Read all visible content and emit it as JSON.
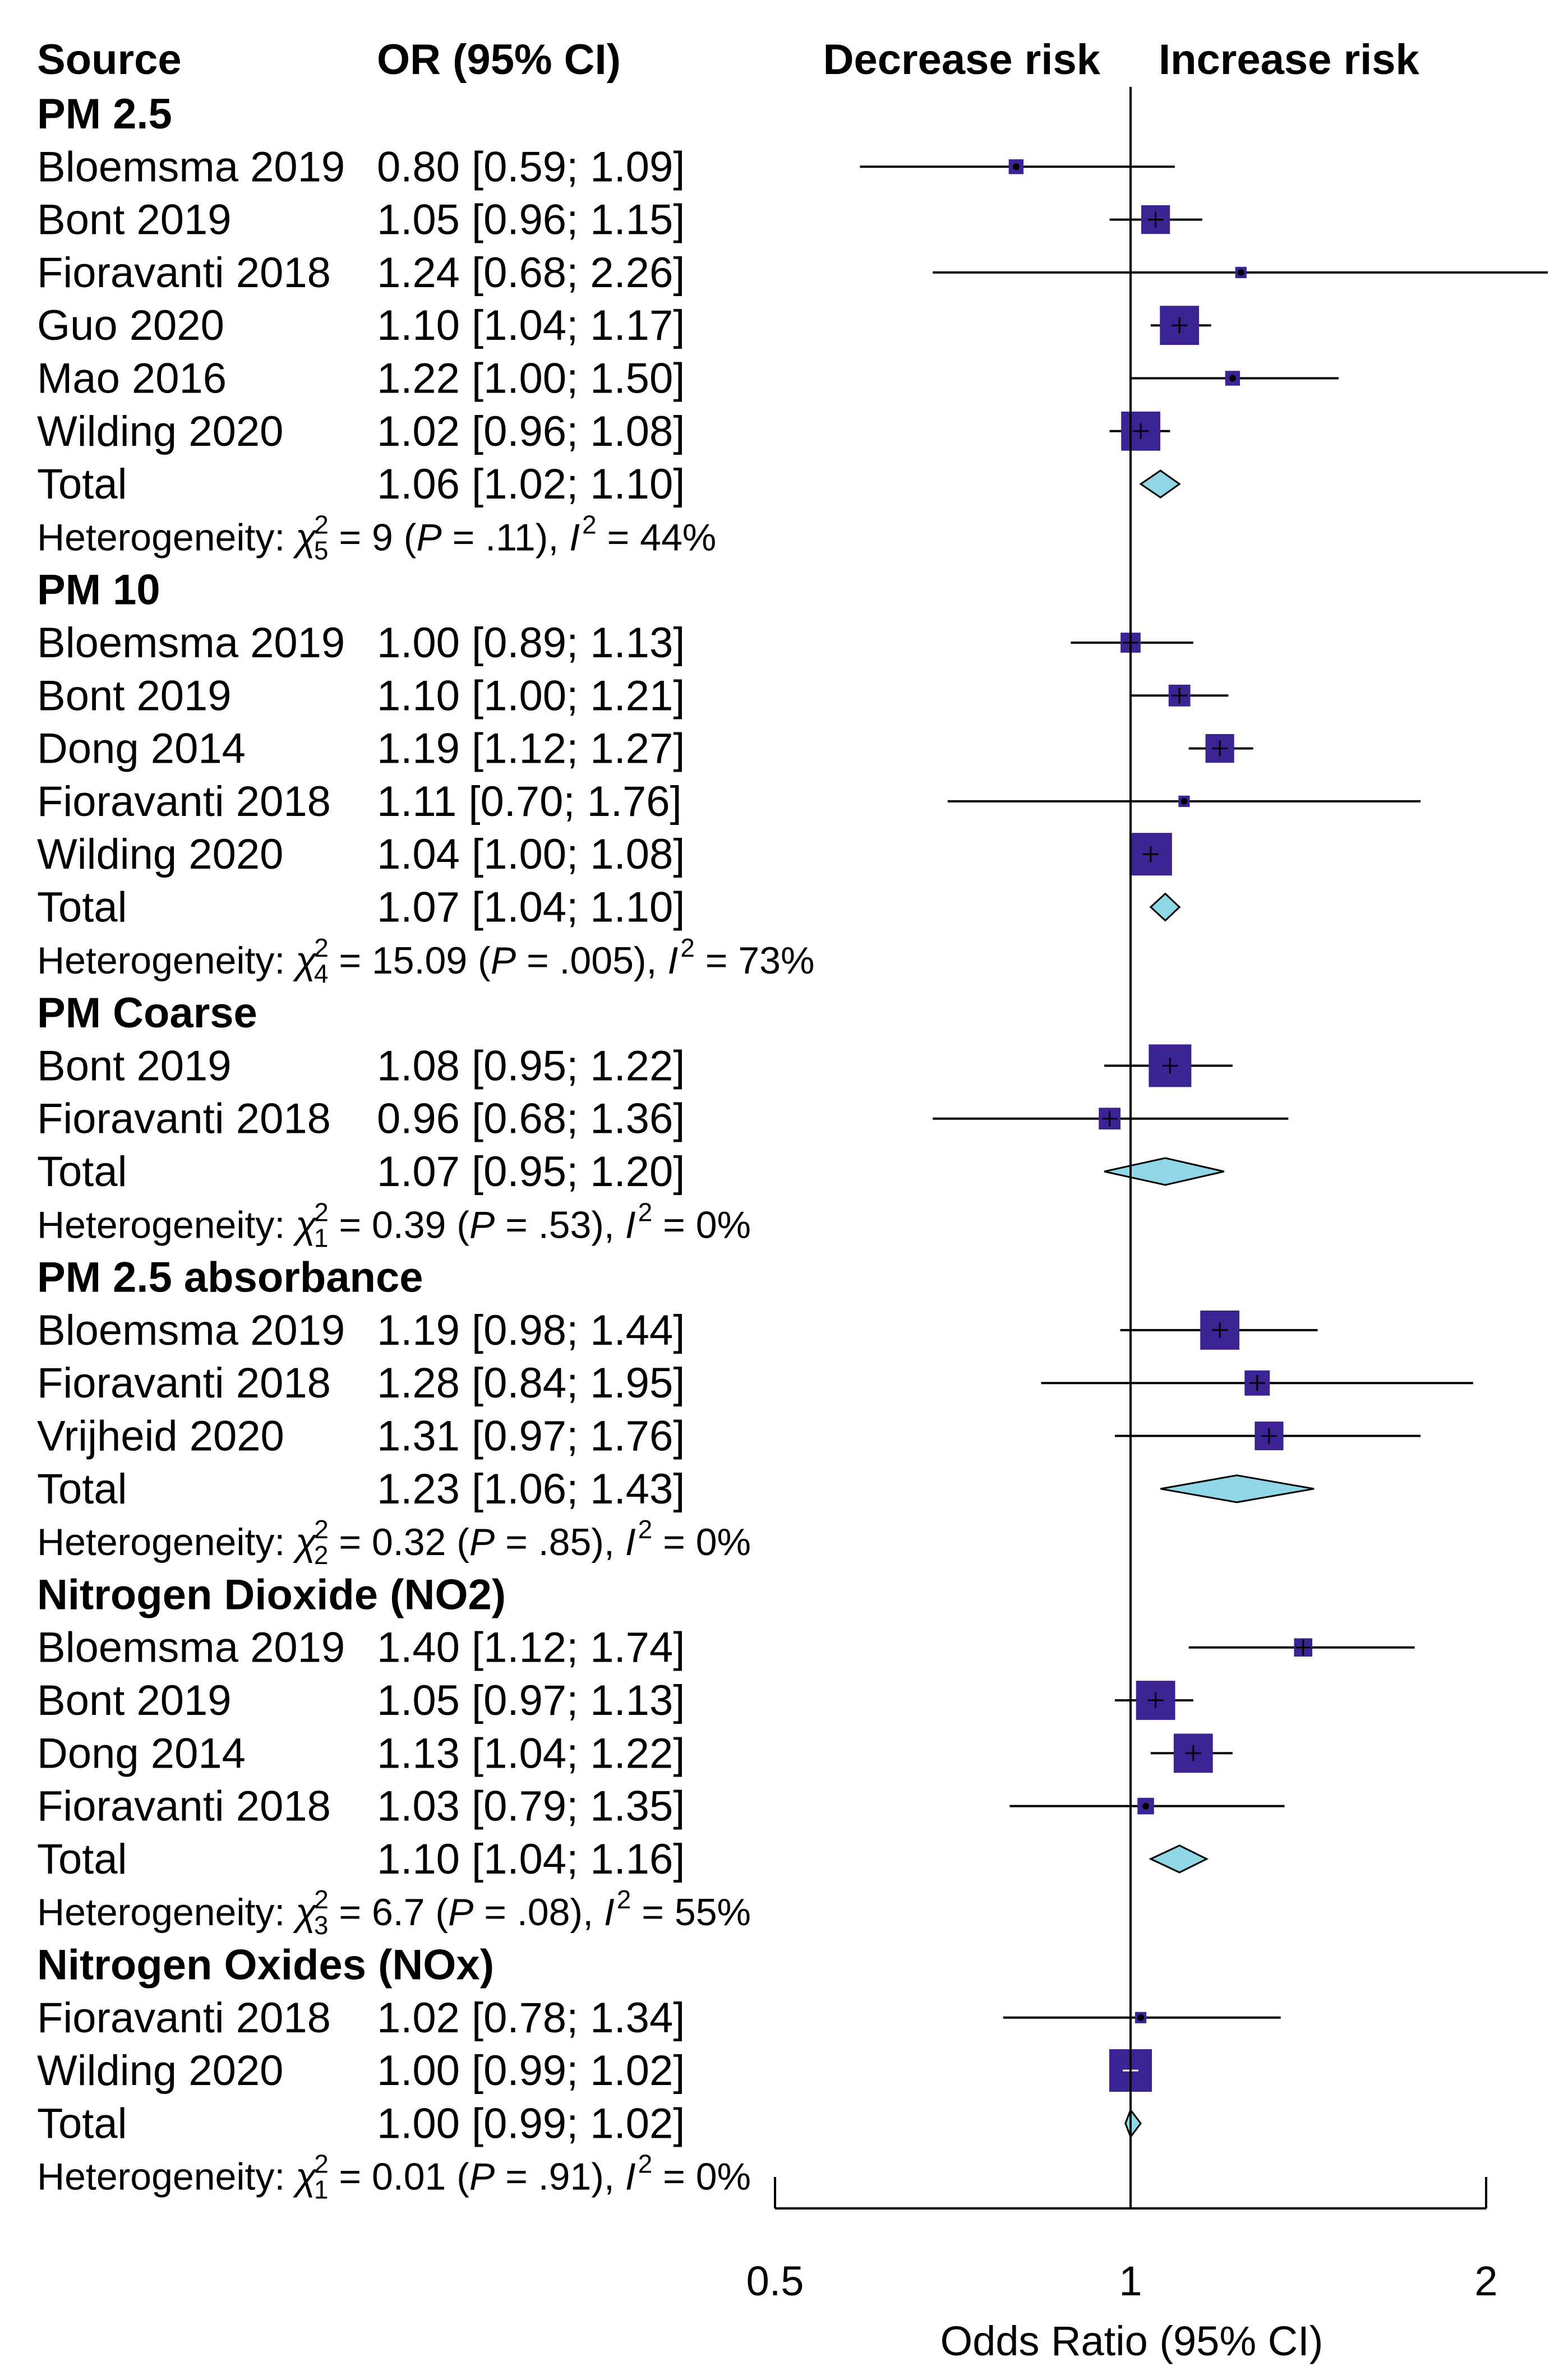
{
  "chart_data": {
    "type": "forest",
    "headers": {
      "source": "Source",
      "estimate": "OR (95% CI)",
      "left_direction": "Decrease risk",
      "right_direction": "Increase risk"
    },
    "x_axis": {
      "label": "Odds Ratio (95% CI)",
      "scale": "log",
      "range": [
        0.5,
        2
      ],
      "ticks": [
        {
          "value": 0.5,
          "label": "0.5"
        },
        {
          "value": 1,
          "label": "1"
        },
        {
          "value": 2,
          "label": "2"
        }
      ],
      "reference_line": 1
    },
    "colors": {
      "study_box": "#3b2394",
      "total_diamond": "#8fd6e6",
      "line": "#000000"
    },
    "groups": [
      {
        "name": "PM 2.5",
        "studies": [
          {
            "source": "Bloemsma 2019",
            "ci_text": "0.80 [0.59; 1.09]",
            "or": 0.8,
            "lo": 0.59,
            "hi": 1.09,
            "weight": 0.2
          },
          {
            "source": "Bont 2019",
            "ci_text": "1.05 [0.96; 1.15]",
            "or": 1.05,
            "lo": 0.96,
            "hi": 1.15,
            "weight": 0.6
          },
          {
            "source": "Fioravanti 2018",
            "ci_text": "1.24 [0.68; 2.26]",
            "or": 1.24,
            "lo": 0.68,
            "hi": 2.26,
            "weight": 0.1
          },
          {
            "source": "Guo 2020",
            "ci_text": "1.10 [1.04; 1.17]",
            "or": 1.1,
            "lo": 1.04,
            "hi": 1.17,
            "weight": 0.9
          },
          {
            "source": "Mao 2016",
            "ci_text": "1.22 [1.00; 1.50]",
            "or": 1.22,
            "lo": 1.0,
            "hi": 1.5,
            "weight": 0.2
          },
          {
            "source": "Wilding 2020",
            "ci_text": "1.02 [0.96; 1.08]",
            "or": 1.02,
            "lo": 0.96,
            "hi": 1.08,
            "weight": 0.9
          }
        ],
        "total": {
          "label": "Total",
          "ci_text": "1.06 [1.02; 1.10]",
          "or": 1.06,
          "lo": 1.02,
          "hi": 1.1
        },
        "heterogeneity": {
          "label": "Heterogeneity: ",
          "chi": "χ",
          "chi_sup": "2",
          "df": "5",
          "stat": " = 9 (",
          "p_letter": "P",
          "p_value": " = .11), ",
          "i_letter": "I",
          "i_sup": "2",
          "i_value": " = 44%"
        }
      },
      {
        "name": "PM 10",
        "studies": [
          {
            "source": "Bloemsma 2019",
            "ci_text": "1.00 [0.89; 1.13]",
            "or": 1.0,
            "lo": 0.89,
            "hi": 1.13,
            "weight": 0.35
          },
          {
            "source": "Bont 2019",
            "ci_text": "1.10 [1.00; 1.21]",
            "or": 1.1,
            "lo": 1.0,
            "hi": 1.21,
            "weight": 0.4
          },
          {
            "source": "Dong 2014",
            "ci_text": "1.19 [1.12; 1.27]",
            "or": 1.19,
            "lo": 1.12,
            "hi": 1.27,
            "weight": 0.6
          },
          {
            "source": "Fioravanti 2018",
            "ci_text": "1.11 [0.70; 1.76]",
            "or": 1.11,
            "lo": 0.7,
            "hi": 1.76,
            "weight": 0.1
          },
          {
            "source": "Wilding 2020",
            "ci_text": "1.04 [1.00; 1.08]",
            "or": 1.04,
            "lo": 1.0,
            "hi": 1.08,
            "weight": 1.0
          }
        ],
        "total": {
          "label": "Total",
          "ci_text": "1.07 [1.04; 1.10]",
          "or": 1.07,
          "lo": 1.04,
          "hi": 1.1
        },
        "heterogeneity": {
          "label": "Heterogeneity: ",
          "chi": "χ",
          "chi_sup": "2",
          "df": "4",
          "stat": " = 15.09 (",
          "p_letter": "P",
          "p_value": " = .005), ",
          "i_letter": "I",
          "i_sup": "2",
          "i_value": " = 73%"
        }
      },
      {
        "name": "PM Coarse",
        "studies": [
          {
            "source": "Bont 2019",
            "ci_text": "1.08 [0.95; 1.22]",
            "or": 1.08,
            "lo": 0.95,
            "hi": 1.22,
            "weight": 1.0
          },
          {
            "source": "Fioravanti 2018",
            "ci_text": "0.96 [0.68; 1.36]",
            "or": 0.96,
            "lo": 0.68,
            "hi": 1.36,
            "weight": 0.4
          }
        ],
        "total": {
          "label": "Total",
          "ci_text": "1.07 [0.95; 1.20]",
          "or": 1.07,
          "lo": 0.95,
          "hi": 1.2
        },
        "heterogeneity": {
          "label": "Heterogeneity: ",
          "chi": "χ",
          "chi_sup": "2",
          "df": "1",
          "stat": " = 0.39 (",
          "p_letter": "P",
          "p_value": " = .53), ",
          "i_letter": "I",
          "i_sup": "2",
          "i_value": " = 0%"
        }
      },
      {
        "name": "PM 2.5 absorbance",
        "studies": [
          {
            "source": "Bloemsma 2019",
            "ci_text": "1.19 [0.98; 1.44]",
            "or": 1.19,
            "lo": 0.98,
            "hi": 1.44,
            "weight": 0.9
          },
          {
            "source": "Fioravanti 2018",
            "ci_text": "1.28 [0.84; 1.95]",
            "or": 1.28,
            "lo": 0.84,
            "hi": 1.95,
            "weight": 0.5
          },
          {
            "source": "Vrijheid 2020",
            "ci_text": "1.31 [0.97; 1.76]",
            "or": 1.31,
            "lo": 0.97,
            "hi": 1.76,
            "weight": 0.6
          }
        ],
        "total": {
          "label": "Total",
          "ci_text": "1.23 [1.06; 1.43]",
          "or": 1.23,
          "lo": 1.06,
          "hi": 1.43
        },
        "heterogeneity": {
          "label": "Heterogeneity: ",
          "chi": "χ",
          "chi_sup": "2",
          "df": "2",
          "stat": " = 0.32 (",
          "p_letter": "P",
          "p_value": " = .85), ",
          "i_letter": "I",
          "i_sup": "2",
          "i_value": " = 0%"
        }
      },
      {
        "name": "Nitrogen Dioxide (NO2)",
        "studies": [
          {
            "source": "Bloemsma 2019",
            "ci_text": "1.40 [1.12; 1.74]",
            "or": 1.4,
            "lo": 1.12,
            "hi": 1.74,
            "weight": 0.3
          },
          {
            "source": "Bont 2019",
            "ci_text": "1.05 [0.97; 1.13]",
            "or": 1.05,
            "lo": 0.97,
            "hi": 1.13,
            "weight": 0.9
          },
          {
            "source": "Dong 2014",
            "ci_text": "1.13 [1.04; 1.22]",
            "or": 1.13,
            "lo": 1.04,
            "hi": 1.22,
            "weight": 0.9
          },
          {
            "source": "Fioravanti 2018",
            "ci_text": "1.03 [0.79; 1.35]",
            "or": 1.03,
            "lo": 0.79,
            "hi": 1.35,
            "weight": 0.25
          }
        ],
        "total": {
          "label": "Total",
          "ci_text": "1.10 [1.04; 1.16]",
          "or": 1.1,
          "lo": 1.04,
          "hi": 1.16
        },
        "heterogeneity": {
          "label": "Heterogeneity: ",
          "chi": "χ",
          "chi_sup": "2",
          "df": "3",
          "stat": " = 6.7 (",
          "p_letter": "P",
          "p_value": " = .08), ",
          "i_letter": "I",
          "i_sup": "2",
          "i_value": " = 55%"
        }
      },
      {
        "name": "Nitrogen Oxides (NOx)",
        "studies": [
          {
            "source": "Fioravanti 2018",
            "ci_text": "1.02 [0.78; 1.34]",
            "or": 1.02,
            "lo": 0.78,
            "hi": 1.34,
            "weight": 0.1
          },
          {
            "source": "Wilding 2020",
            "ci_text": "1.00 [0.99; 1.02]",
            "or": 1.0,
            "lo": 0.99,
            "hi": 1.02,
            "weight": 1.0
          }
        ],
        "total": {
          "label": "Total",
          "ci_text": "1.00 [0.99; 1.02]",
          "or": 1.0,
          "lo": 0.99,
          "hi": 1.02
        },
        "heterogeneity": {
          "label": "Heterogeneity: ",
          "chi": "χ",
          "chi_sup": "2",
          "df": "1",
          "stat": " = 0.01 (",
          "p_letter": "P",
          "p_value": " = .91), ",
          "i_letter": "I",
          "i_sup": "2",
          "i_value": " = 0%"
        }
      }
    ]
  }
}
